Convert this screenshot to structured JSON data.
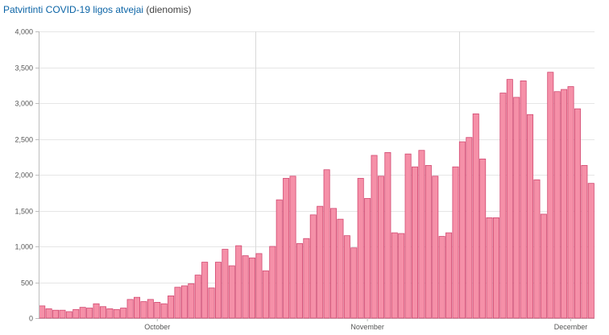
{
  "header": {
    "title": "Patvirtinti COVID-19 ligos atvejai",
    "subtitle": "(dienomis)"
  },
  "colors": {
    "title": "#0b64a6",
    "bar_fill": "#f590a8",
    "bar_stroke": "#d24870",
    "grid": "#e6e6e6",
    "month_line": "#d9d9d9"
  },
  "chart_data": {
    "type": "bar",
    "title": "Patvirtinti COVID-19 ligos atvejai (dienomis)",
    "xlabel": "",
    "ylabel": "",
    "ylim": [
      0,
      4000
    ],
    "yticks": [
      0,
      500,
      1000,
      1500,
      2000,
      2500,
      3000,
      3500,
      4000
    ],
    "ytick_labels": [
      "0",
      "500",
      "1,000",
      "1,500",
      "2,000",
      "2,500",
      "3,000",
      "3,500",
      "4,000"
    ],
    "xtick_labels": [
      "October",
      "November",
      "December"
    ],
    "xtick_positions": [
      17.5,
      48.5,
      78.5
    ],
    "month_boundaries": [
      32,
      62
    ],
    "grid": true,
    "legend": "none",
    "values": [
      170,
      130,
      110,
      110,
      90,
      120,
      150,
      140,
      200,
      160,
      130,
      120,
      140,
      260,
      290,
      230,
      260,
      220,
      200,
      310,
      430,
      450,
      480,
      600,
      780,
      420,
      780,
      960,
      730,
      1010,
      870,
      840,
      900,
      660,
      1000,
      1650,
      1950,
      1980,
      1040,
      1110,
      1440,
      1560,
      2070,
      1530,
      1380,
      1150,
      980,
      1950,
      1670,
      2270,
      1980,
      2310,
      1190,
      1180,
      2290,
      2110,
      2340,
      2130,
      1980,
      1140,
      1190,
      2110,
      2460,
      2520,
      2850,
      2220,
      1400,
      1400,
      3140,
      3330,
      3080,
      3310,
      2840,
      1930,
      1450,
      3430,
      3160,
      3190,
      3230,
      2920,
      2130,
      1880
    ]
  }
}
